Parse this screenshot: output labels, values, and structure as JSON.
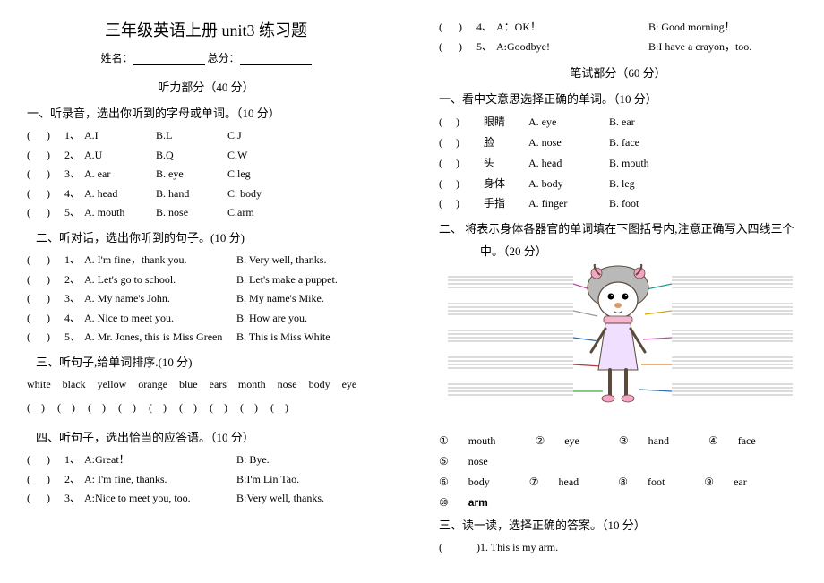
{
  "title": "三年级英语上册 unit3 练习题",
  "name_label": "姓名：",
  "score_label": "总分：",
  "listening_title": "听力部分（40 分）",
  "writing_title": "笔试部分（60 分）",
  "sec1": {
    "h": "一、听录音，选出你听到的字母或单词。（10 分）",
    "rows": [
      {
        "n": "1、",
        "a": "A.I",
        "b": "B.L",
        "c": "C.J"
      },
      {
        "n": "2、",
        "a": "A.U",
        "b": "B.Q",
        "c": "C.W"
      },
      {
        "n": "3、",
        "a": "A. ear",
        "b": "B. eye",
        "c": "C.leg"
      },
      {
        "n": "4、",
        "a": "A. head",
        "b": "B. hand",
        "c": "C. body"
      },
      {
        "n": "5、",
        "a": "A. mouth",
        "b": "B. nose",
        "c": "C.arm"
      }
    ]
  },
  "sec2": {
    "h": "二、听对话，选出你听到的句子。(10 分)",
    "rows": [
      {
        "n": "1、",
        "a": "A. I'm fine，thank you.",
        "b": "B. Very well, thanks."
      },
      {
        "n": "2、",
        "a": "A. Let's go to school.",
        "b": "B. Let's make a puppet."
      },
      {
        "n": "3、",
        "a": "A. My name's John.",
        "b": "B. My name's Mike."
      },
      {
        "n": "4、",
        "a": "A. Nice to meet you.",
        "b": "B. How are you."
      },
      {
        "n": "5、",
        "a": "A. Mr. Jones, this is Miss Green",
        "b": "B. This is Miss White"
      }
    ]
  },
  "sec3": {
    "h": "三、听句子,给单词排序.(10 分)",
    "words": "white   black   yellow   orange   blue   ears   month   nose   body   eye"
  },
  "sec4": {
    "h": "四、听句子，选出恰当的应答语。（10 分）",
    "rows": [
      {
        "n": "1、",
        "a": "A:Great！",
        "b": "B: Bye."
      },
      {
        "n": "2、",
        "a": "A: I'm fine, thanks.",
        "b": "B:I'm Lin Tao."
      },
      {
        "n": "3、",
        "a": "A:Nice to meet you, too.",
        "b": "B:Very well, thanks."
      },
      {
        "n": "4、",
        "a": "A：OK！",
        "b": "B: Good morning！"
      },
      {
        "n": "5、",
        "a": "A:Goodbye!",
        "b": "B:I have a crayon，too."
      }
    ]
  },
  "wsec1": {
    "h": "一、看中文意思选择正确的单词。（10 分）",
    "rows": [
      {
        "w": "眼睛",
        "a": "A. eye",
        "b": "B. ear"
      },
      {
        "w": "脸",
        "a": "A. nose",
        "b": "B. face"
      },
      {
        "w": "头",
        "a": "A. head",
        "b": "B. mouth"
      },
      {
        "w": "身体",
        "a": "A. body",
        "b": "B. leg"
      },
      {
        "w": "手指",
        "a": "A. finger",
        "b": "B. foot"
      }
    ]
  },
  "wsec2": {
    "h1": "二、  将表示身体各器官的单词填在下图括号内,注意正确写入四线三个",
    "h2": "中。（20 分）",
    "bank": [
      {
        "c": "①",
        "w": "mouth"
      },
      {
        "c": "②",
        "w": "eye"
      },
      {
        "c": "③",
        "w": "hand"
      },
      {
        "c": "④",
        "w": "face"
      },
      {
        "c": "⑤",
        "w": "nose"
      },
      {
        "c": "⑥",
        "w": "body"
      },
      {
        "c": "⑦",
        "w": "head"
      },
      {
        "c": "⑧",
        "w": "foot"
      },
      {
        "c": "⑨",
        "w": "ear"
      },
      {
        "c": "⑩",
        "w": "arm"
      }
    ]
  },
  "wsec3": {
    "h": "三、读一读，选择正确的答案。（10 分）",
    "row1": ")1. This is my arm."
  },
  "diagram": {
    "colors": {
      "hair": "#b9b9b9",
      "bow": "#f7a3c4",
      "face": "#ffffff",
      "outline": "#5b4a3a",
      "nose": "#d99a6c",
      "scarf": "#f6b4cf",
      "dress": "#f0dfff",
      "lines": [
        "#c44a9b",
        "#9a9a9a",
        "#2d6fb5",
        "#b03a3a",
        "#3fae3f",
        "#1aa08a",
        "#d9a900",
        "#c44a9b",
        "#e67e22",
        "#2d6fb5"
      ]
    }
  }
}
